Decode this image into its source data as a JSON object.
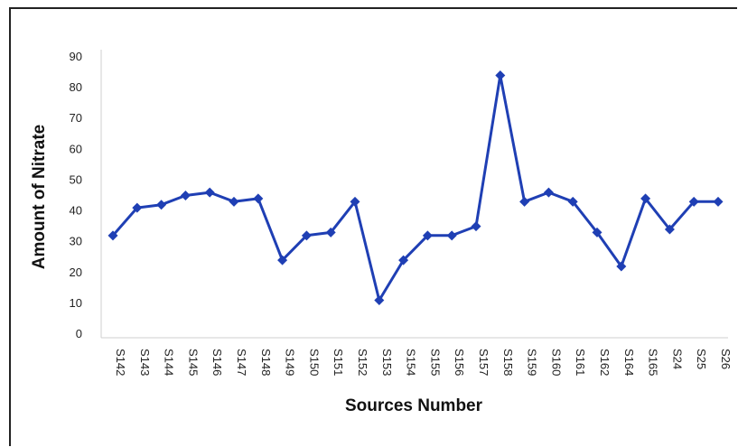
{
  "chart_data": {
    "type": "line",
    "title": "",
    "xlabel": "Sources Number",
    "ylabel": "Amount of Nitrate",
    "ylim": [
      0,
      90
    ],
    "yticks": [
      0,
      10,
      20,
      30,
      40,
      50,
      60,
      70,
      80,
      90
    ],
    "grid": false,
    "legend": "none",
    "line_color": "#1f3fb4",
    "categories": [
      "S142",
      "S143",
      "S144",
      "S145",
      "S146",
      "S147",
      "S148",
      "S149",
      "S150",
      "S151",
      "S152",
      "S153",
      "S154",
      "S155",
      "S156",
      "S157",
      "S158",
      "S159",
      "S160",
      "S161",
      "S162",
      "S164",
      "S165",
      "S24",
      "S25",
      "S26"
    ],
    "series": [
      {
        "values": [
          32,
          41,
          42,
          45,
          46,
          43,
          44,
          24,
          32,
          33,
          43,
          11,
          24,
          32,
          32,
          35,
          84,
          43,
          46,
          43,
          33,
          22,
          44,
          34,
          43,
          43
        ]
      }
    ]
  }
}
